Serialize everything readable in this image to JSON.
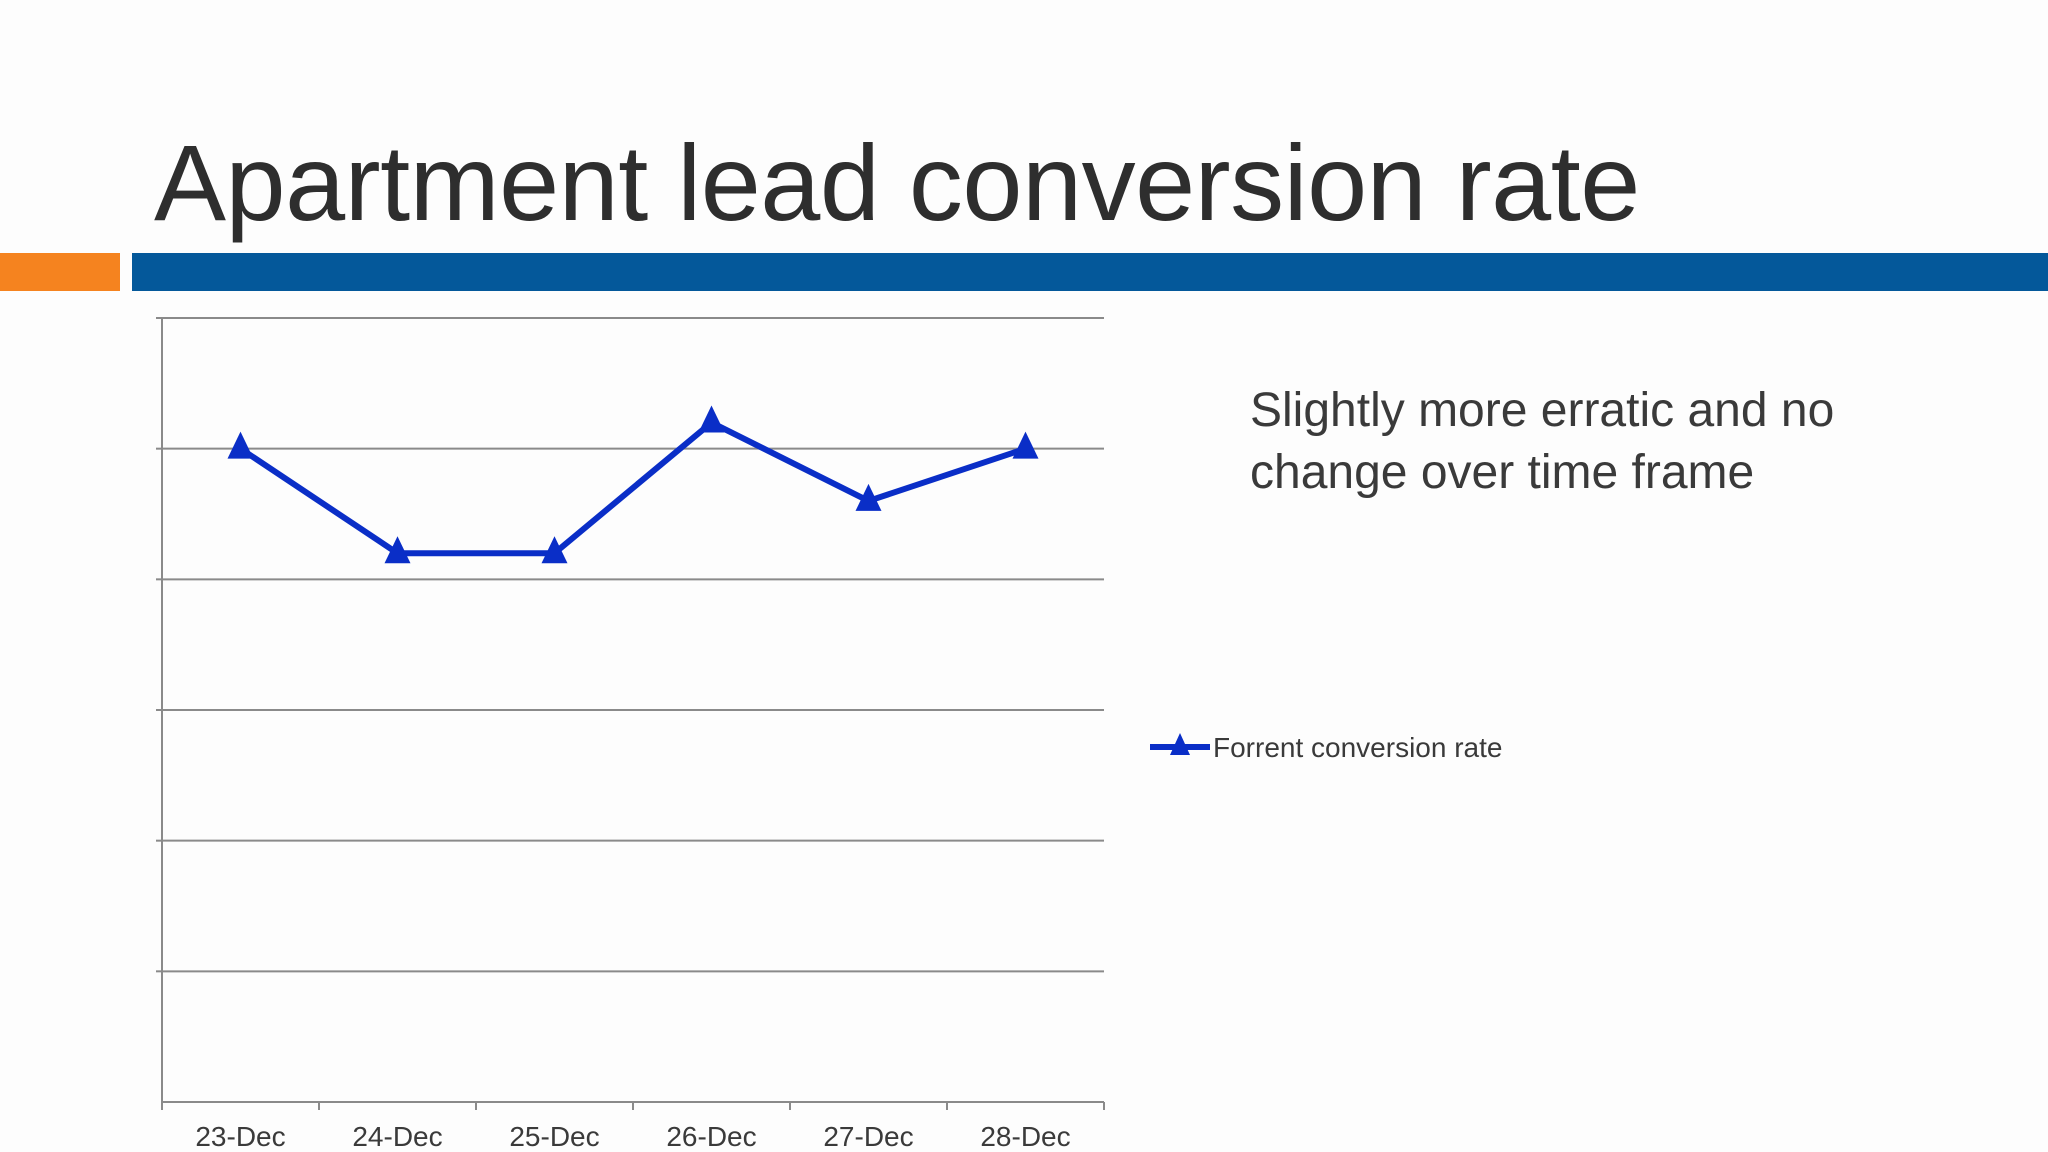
{
  "slide": {
    "title": "Apartment lead conversion rate",
    "note": "Slightly more erratic and no change over time frame",
    "accent_orange": "#f5831f",
    "accent_blue": "#04589a"
  },
  "chart_data": {
    "type": "line",
    "categories": [
      "23-Dec",
      "24-Dec",
      "25-Dec",
      "26-Dec",
      "27-Dec",
      "28-Dec"
    ],
    "series": [
      {
        "name": "Forrent conversion rate",
        "values": [
          5.0,
          4.2,
          4.2,
          5.2,
          4.6,
          5.0
        ],
        "color": "#0a2ec7",
        "marker": "triangle"
      }
    ],
    "ylim": [
      0,
      6
    ],
    "gridlines": [
      1,
      2,
      3,
      4,
      5,
      6
    ],
    "y_tick_labels_visible": false,
    "grid": true,
    "legend": "right"
  }
}
